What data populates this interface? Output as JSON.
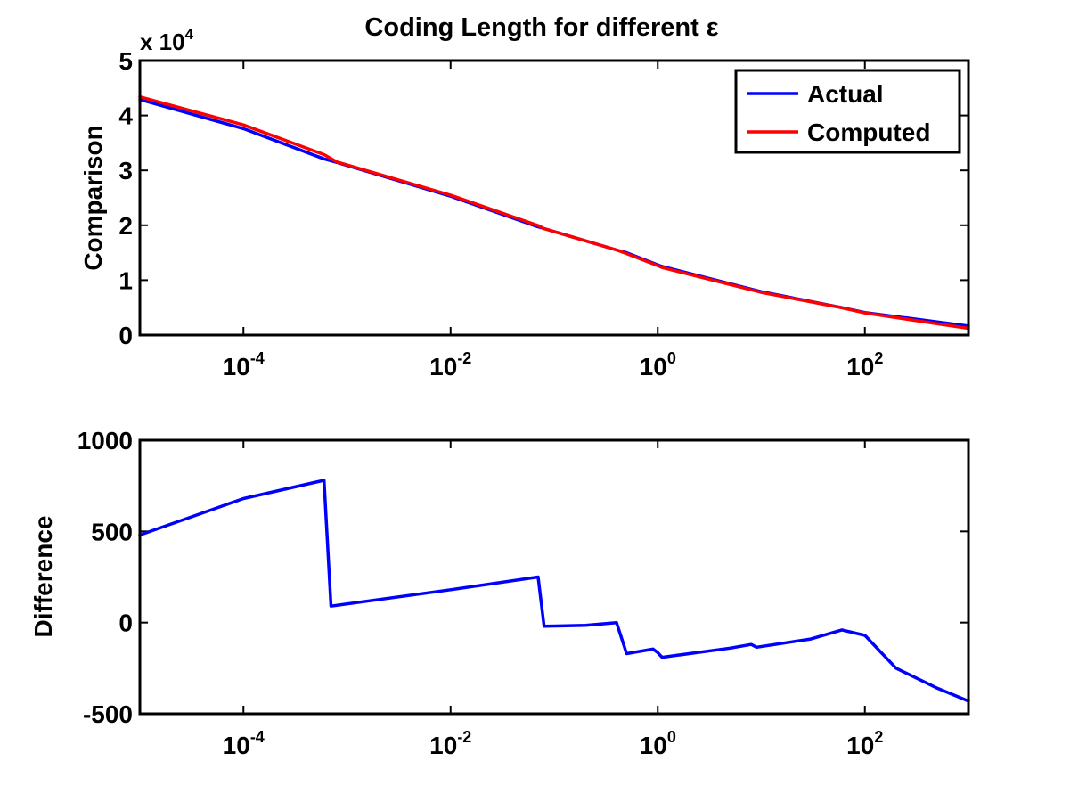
{
  "chart_data": [
    {
      "type": "line",
      "title": "Coding Length for different ε",
      "xlabel": "",
      "ylabel": "Comparison",
      "y_multiplier_label": "x 10",
      "y_multiplier_exponent": "4",
      "x_scale": "log",
      "xlim": [
        1e-05,
        1000
      ],
      "ylim": [
        0,
        50000
      ],
      "x_ticks": [
        0.0001,
        0.01,
        1,
        100
      ],
      "x_tick_labels": [
        {
          "base": "10",
          "exp": "-4"
        },
        {
          "base": "10",
          "exp": "-2"
        },
        {
          "base": "10",
          "exp": "0"
        },
        {
          "base": "10",
          "exp": "2"
        }
      ],
      "y_ticks": [
        0,
        10000,
        20000,
        30000,
        40000,
        50000
      ],
      "y_tick_labels": [
        "0",
        "1",
        "2",
        "3",
        "4",
        "5"
      ],
      "legend_position": "top-right",
      "series": [
        {
          "name": "Actual",
          "color": "#0000ff",
          "x": [
            1e-05,
            0.0001,
            0.0006,
            0.0008,
            0.01,
            0.07,
            0.08,
            0.4,
            0.5,
            1,
            1.1,
            10,
            60,
            100,
            1000
          ],
          "y": [
            42900,
            37600,
            32100,
            31450,
            25300,
            19700,
            19400,
            15500,
            15000,
            12800,
            12500,
            7900,
            5000,
            4100,
            1650
          ]
        },
        {
          "name": "Computed",
          "color": "#ff0000",
          "x": [
            1e-05,
            0.0001,
            0.0006,
            0.0008,
            0.01,
            0.07,
            0.08,
            0.4,
            0.5,
            1,
            1.1,
            10,
            60,
            100,
            1000
          ],
          "y": [
            43400,
            38280,
            32880,
            31530,
            25480,
            19950,
            19380,
            15500,
            14830,
            12650,
            12310,
            7780,
            4960,
            4030,
            1220
          ]
        }
      ]
    },
    {
      "type": "line",
      "title": "",
      "xlabel": "",
      "ylabel": "Difference",
      "x_scale": "log",
      "xlim": [
        1e-05,
        1000
      ],
      "ylim": [
        -500,
        1000
      ],
      "x_ticks": [
        0.0001,
        0.01,
        1,
        100
      ],
      "x_tick_labels": [
        {
          "base": "10",
          "exp": "-4"
        },
        {
          "base": "10",
          "exp": "-2"
        },
        {
          "base": "10",
          "exp": "0"
        },
        {
          "base": "10",
          "exp": "2"
        }
      ],
      "y_ticks": [
        -500,
        0,
        500,
        1000
      ],
      "y_tick_labels": [
        "-500",
        "0",
        "500",
        "1000"
      ],
      "series": [
        {
          "color": "#0000ff",
          "x": [
            1e-05,
            0.0001,
            0.0006,
            0.0007,
            0.01,
            0.07,
            0.08,
            0.2,
            0.4,
            0.5,
            0.8,
            0.9,
            1.0,
            1.1,
            5,
            8,
            9,
            30,
            60,
            100,
            200,
            500,
            1000
          ],
          "y": [
            480,
            680,
            780,
            90,
            180,
            250,
            -20,
            -15,
            0,
            -170,
            -150,
            -145,
            -165,
            -190,
            -140,
            -120,
            -135,
            -90,
            -40,
            -70,
            -250,
            -360,
            -430
          ]
        }
      ]
    }
  ]
}
